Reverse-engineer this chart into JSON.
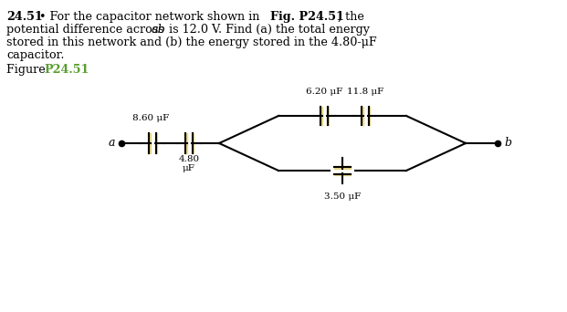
{
  "fig_label_color": "#5a9e32",
  "cap_860": "8.60 μF",
  "cap_480_line1": "4.80",
  "cap_480_line2": "μF",
  "cap_620": "6.20 μF",
  "cap_118": "11.8 μF",
  "cap_350": "3.50 μF",
  "cap_color": "#e8d88a",
  "line_color": "#000000",
  "background_color": "#ffffff"
}
